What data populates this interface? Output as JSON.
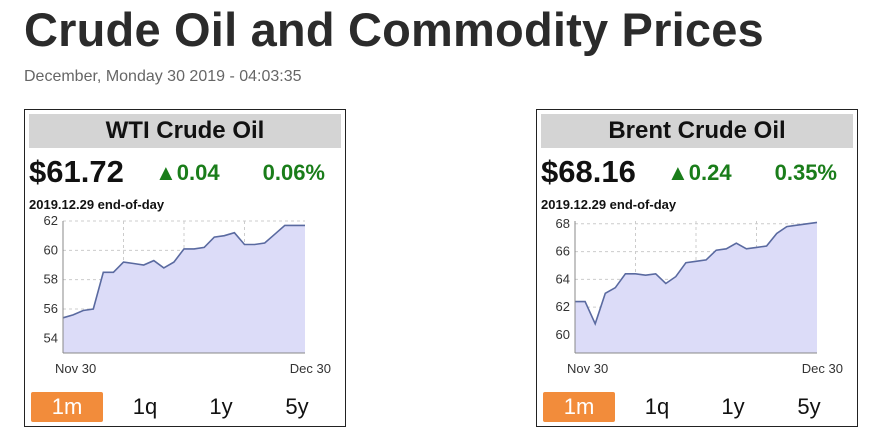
{
  "page": {
    "title": "Crude Oil and Commodity Prices",
    "timestamp": "December, Monday 30 2019 - 04:03:35"
  },
  "widgets": [
    {
      "name": "WTI Crude Oil",
      "price": "$61.72",
      "change": "0.04",
      "change_direction": "up",
      "percent": "0.06%",
      "date_note": "2019.12.29 end-of-day",
      "tabs": [
        "1m",
        "1q",
        "1y",
        "5y"
      ],
      "active_tab": "1m",
      "chart_data": {
        "type": "area",
        "x_start_label": "Nov 30",
        "x_end_label": "Dec 30",
        "y_ticks": [
          54,
          56,
          58,
          60,
          62
        ],
        "ylim": [
          53,
          62
        ],
        "grid": true,
        "fill_color": "#dcdcf8",
        "line_color": "#5a6aa0",
        "values": [
          55.4,
          55.6,
          55.9,
          56.0,
          58.5,
          58.5,
          59.2,
          59.1,
          59.0,
          59.3,
          58.8,
          59.2,
          60.1,
          60.1,
          60.2,
          60.9,
          61.0,
          61.2,
          60.4,
          60.4,
          60.5,
          61.1,
          61.7,
          61.7,
          61.7
        ]
      }
    },
    {
      "name": "Brent Crude Oil",
      "price": "$68.16",
      "change": "0.24",
      "change_direction": "up",
      "percent": "0.35%",
      "date_note": "2019.12.29 end-of-day",
      "tabs": [
        "1m",
        "1q",
        "1y",
        "5y"
      ],
      "active_tab": "1m",
      "chart_data": {
        "type": "area",
        "x_start_label": "Nov 30",
        "x_end_label": "Dec 30",
        "y_ticks": [
          60,
          62,
          64,
          66,
          68
        ],
        "ylim": [
          58.7,
          68.2
        ],
        "grid": true,
        "fill_color": "#dcdcf8",
        "line_color": "#5a6aa0",
        "values": [
          62.4,
          62.4,
          60.8,
          63.0,
          63.4,
          64.4,
          64.4,
          64.3,
          64.4,
          63.7,
          64.2,
          65.2,
          65.3,
          65.4,
          66.1,
          66.2,
          66.6,
          66.2,
          66.3,
          66.4,
          67.3,
          67.8,
          67.9,
          68.0,
          68.1
        ]
      }
    }
  ],
  "colors": {
    "up": "#1a7d1a",
    "active_tab": "#f28c3b",
    "header_bg": "#d4d4d4"
  }
}
